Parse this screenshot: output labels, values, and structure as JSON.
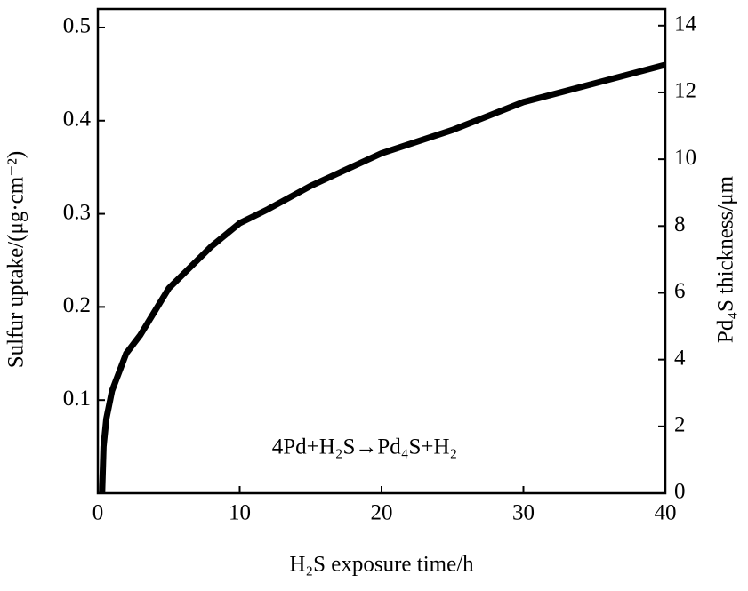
{
  "chart_data": {
    "type": "line",
    "annotation": "4Pd+H₂S→Pd₄S+H₂",
    "xlabel": "H₂S exposure time/h",
    "ylabel": "Sulfur uptake/(μg·cm⁻²)",
    "y2label": "Pd₄S thickness/μm",
    "x": [
      0.3,
      0.4,
      0.6,
      1,
      1.5,
      2,
      3,
      4,
      5,
      6,
      8,
      10,
      12,
      15,
      20,
      25,
      30,
      35,
      40
    ],
    "series": [
      {
        "color": "#000000",
        "values": [
          0,
          0.05,
          0.08,
          0.11,
          0.13,
          0.15,
          0.17,
          0.195,
          0.22,
          0.235,
          0.265,
          0.29,
          0.305,
          0.33,
          0.365,
          0.39,
          0.42,
          0.44,
          0.46
        ]
      }
    ],
    "xlim": [
      0,
      40
    ],
    "xticks": [
      0,
      10,
      20,
      30,
      40
    ],
    "ylim": [
      0,
      0.52
    ],
    "yticks": [
      0.1,
      0.2,
      0.3,
      0.4,
      0.5
    ],
    "y2lim": [
      0,
      14.5
    ],
    "y2ticks": [
      0,
      2,
      4,
      6,
      8,
      10,
      12,
      14
    ],
    "grid": false
  }
}
